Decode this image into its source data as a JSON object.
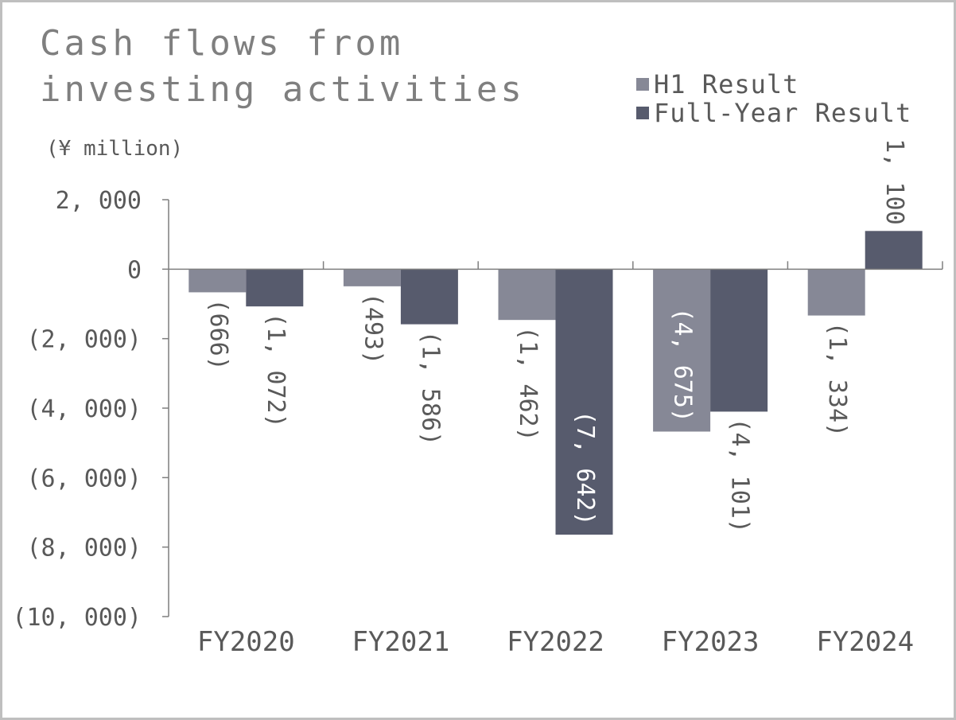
{
  "colors": {
    "h1": "#868896",
    "full_year": "#575b6d",
    "axis": "#7f7f7f",
    "label": "#595959",
    "label_on_dark": "#ffffff"
  },
  "chart_data": {
    "type": "bar",
    "title": "Cash flows from investing activities",
    "unit_label": "(¥ million)",
    "categories": [
      "FY2020",
      "FY2021",
      "FY2022",
      "FY2023",
      "FY2024"
    ],
    "series": [
      {
        "name": "H1 Result",
        "values": [
          -666,
          -493,
          -1462,
          -4675,
          -1334
        ],
        "labels": [
          "(666)",
          "(493)",
          "(1, 462)",
          "(4, 675)",
          "(1, 334)"
        ]
      },
      {
        "name": "Full-Year Result",
        "values": [
          -1072,
          -1586,
          -7642,
          -4101,
          1100
        ],
        "labels": [
          "(1, 072)",
          "(1, 586)",
          "(7, 642)",
          "(4, 101)",
          "1, 100"
        ]
      }
    ],
    "ylim": [
      -10000,
      2000
    ],
    "yticks": [
      2000,
      0,
      -2000,
      -4000,
      -6000,
      -8000,
      -10000
    ],
    "ytick_labels": [
      "2, 000",
      "0",
      "(2, 000)",
      "(4, 000)",
      "(6, 000)",
      "(8, 000)",
      "(10, 000)"
    ],
    "legend_position": "top-right",
    "grid": false,
    "data_label_orientation": "vertical"
  }
}
